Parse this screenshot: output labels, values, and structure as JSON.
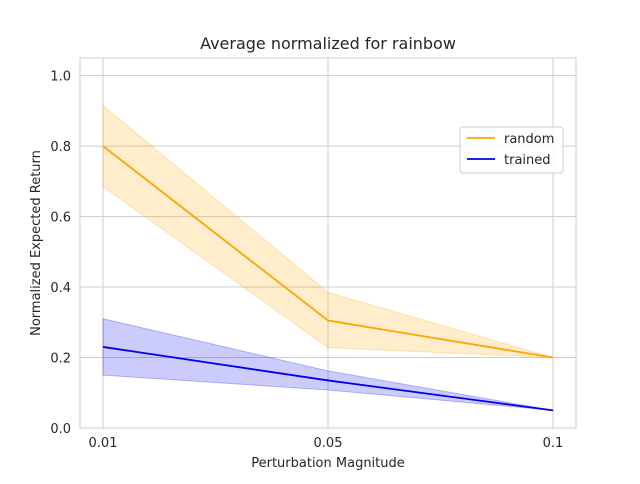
{
  "chart_data": {
    "type": "line",
    "title": "Average normalized for rainbow",
    "xlabel": "Perturbation Magnitude",
    "ylabel": "Normalized Expected Return",
    "x": [
      0.01,
      0.05,
      0.1
    ],
    "x_tick_labels": [
      "0.01",
      "0.05",
      "0.1"
    ],
    "ylim": [
      0.0,
      1.05
    ],
    "y_ticks": [
      0.0,
      0.2,
      0.4,
      0.6,
      0.8,
      1.0
    ],
    "y_tick_labels": [
      "0.0",
      "0.2",
      "0.4",
      "0.6",
      "0.8",
      "1.0"
    ],
    "grid": true,
    "legend_position": "upper-right",
    "series": [
      {
        "name": "random",
        "color": "#ffa500",
        "values": [
          0.8,
          0.305,
          0.2
        ],
        "lower": [
          0.685,
          0.228,
          0.2
        ],
        "upper": [
          0.915,
          0.385,
          0.2
        ]
      },
      {
        "name": "trained",
        "color": "#0000ee",
        "values": [
          0.23,
          0.135,
          0.05
        ],
        "lower": [
          0.15,
          0.108,
          0.05
        ],
        "upper": [
          0.31,
          0.162,
          0.05
        ]
      }
    ]
  }
}
